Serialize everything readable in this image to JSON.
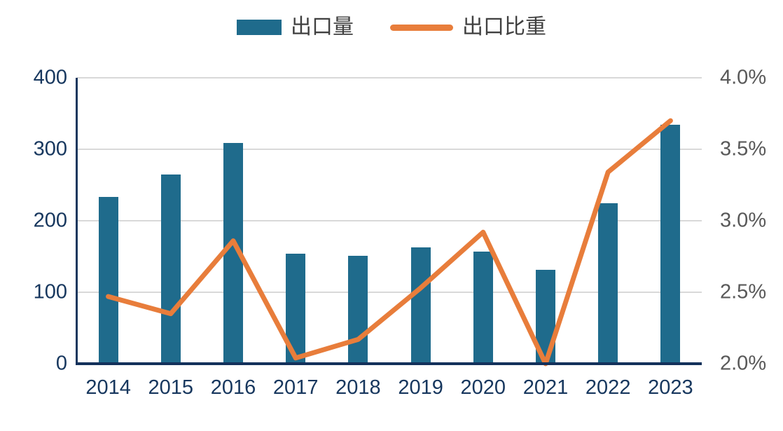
{
  "legend": [
    {
      "label": "出口量",
      "type": "bar",
      "color": "#1f6b8c"
    },
    {
      "label": "出口比重",
      "type": "line",
      "color": "#e87d3b"
    }
  ],
  "colors": {
    "bar": "#1f6b8c",
    "line": "#e87d3b",
    "axis_navy": "#17375e",
    "right_label_gray": "#595959",
    "gridline": "#d9d9d9",
    "legend_text": "#404040"
  },
  "chart_data": {
    "type": "bar",
    "subtype": "combo-bar-line-dual-axis",
    "title": "",
    "categories": [
      "2014",
      "2015",
      "2016",
      "2017",
      "2018",
      "2019",
      "2020",
      "2021",
      "2022",
      "2023"
    ],
    "series": [
      {
        "name": "出口量",
        "type": "bar",
        "axis": "left",
        "color": "#1f6b8c",
        "values": [
          233,
          265,
          309,
          154,
          151,
          163,
          157,
          131,
          225,
          334
        ]
      },
      {
        "name": "出口比重",
        "type": "line",
        "axis": "right",
        "color": "#e87d3b",
        "unit": "%",
        "values": [
          2.47,
          2.35,
          2.86,
          2.04,
          2.17,
          2.53,
          2.92,
          2.0,
          3.34,
          3.7
        ]
      }
    ],
    "left_axis": {
      "min": 0,
      "max": 400,
      "ticks": [
        "0",
        "100",
        "200",
        "300",
        "400"
      ]
    },
    "right_axis": {
      "min": 2.0,
      "max": 4.0,
      "ticks": [
        "2.0%",
        "2.5%",
        "3.0%",
        "3.5%",
        "4.0%"
      ]
    },
    "grid": true,
    "legend_position": "top"
  }
}
